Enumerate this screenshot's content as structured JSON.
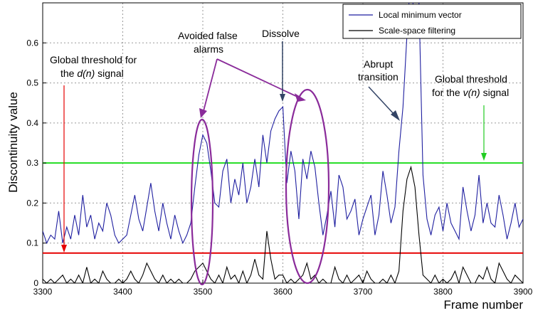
{
  "chart_data": {
    "type": "line",
    "title": "",
    "xlabel": "Frame number",
    "ylabel": "Discontinuity value",
    "xlim": [
      3300,
      3900
    ],
    "ylim": [
      0,
      0.7
    ],
    "xticks": [
      3300,
      3400,
      3500,
      3600,
      3700,
      3800,
      3900
    ],
    "yticks": [
      0,
      0.1,
      0.2,
      0.3,
      0.4,
      0.5,
      0.6
    ],
    "xtick_labels": [
      "3300",
      "3400",
      "3500",
      "3600",
      "3700",
      "3800",
      "3900"
    ],
    "ytick_labels": [
      "0",
      "0.1",
      "0.2",
      "0.3",
      "0.4",
      "0.5",
      "0.6"
    ],
    "grid": true,
    "legend_position": "top-right",
    "series": [
      {
        "name": "Local minimum vector",
        "color": "#1f1fa0",
        "x": [
          3300,
          3305,
          3310,
          3315,
          3320,
          3325,
          3330,
          3335,
          3340,
          3345,
          3350,
          3355,
          3360,
          3365,
          3370,
          3375,
          3380,
          3385,
          3390,
          3395,
          3400,
          3405,
          3410,
          3415,
          3420,
          3425,
          3430,
          3435,
          3440,
          3445,
          3450,
          3455,
          3460,
          3465,
          3470,
          3475,
          3480,
          3485,
          3490,
          3495,
          3500,
          3505,
          3510,
          3515,
          3520,
          3525,
          3530,
          3535,
          3540,
          3545,
          3550,
          3555,
          3560,
          3565,
          3570,
          3575,
          3580,
          3585,
          3590,
          3595,
          3600,
          3605,
          3610,
          3615,
          3620,
          3625,
          3630,
          3635,
          3640,
          3645,
          3650,
          3655,
          3660,
          3665,
          3670,
          3675,
          3680,
          3685,
          3690,
          3695,
          3700,
          3705,
          3710,
          3715,
          3720,
          3725,
          3730,
          3735,
          3740,
          3745,
          3750,
          3755,
          3760,
          3765,
          3770,
          3775,
          3780,
          3785,
          3790,
          3795,
          3800,
          3805,
          3810,
          3815,
          3820,
          3825,
          3830,
          3835,
          3840,
          3845,
          3850,
          3855,
          3860,
          3865,
          3870,
          3875,
          3880,
          3885,
          3890,
          3895,
          3900
        ],
        "y": [
          0.13,
          0.1,
          0.12,
          0.11,
          0.18,
          0.1,
          0.14,
          0.11,
          0.17,
          0.12,
          0.22,
          0.14,
          0.17,
          0.11,
          0.15,
          0.13,
          0.2,
          0.17,
          0.12,
          0.1,
          0.11,
          0.12,
          0.17,
          0.22,
          0.16,
          0.13,
          0.19,
          0.25,
          0.18,
          0.13,
          0.2,
          0.15,
          0.11,
          0.17,
          0.13,
          0.1,
          0.12,
          0.15,
          0.24,
          0.32,
          0.37,
          0.35,
          0.28,
          0.2,
          0.19,
          0.28,
          0.31,
          0.2,
          0.26,
          0.22,
          0.3,
          0.2,
          0.24,
          0.31,
          0.24,
          0.37,
          0.3,
          0.38,
          0.41,
          0.43,
          0.44,
          0.25,
          0.33,
          0.28,
          0.16,
          0.31,
          0.26,
          0.33,
          0.29,
          0.2,
          0.12,
          0.17,
          0.23,
          0.14,
          0.27,
          0.24,
          0.16,
          0.18,
          0.21,
          0.12,
          0.16,
          0.19,
          0.22,
          0.12,
          0.17,
          0.28,
          0.22,
          0.15,
          0.19,
          0.33,
          0.44,
          0.62,
          0.78,
          0.62,
          0.7,
          0.27,
          0.16,
          0.12,
          0.17,
          0.19,
          0.13,
          0.2,
          0.15,
          0.13,
          0.11,
          0.24,
          0.18,
          0.13,
          0.17,
          0.27,
          0.15,
          0.2,
          0.15,
          0.14,
          0.22,
          0.17,
          0.11,
          0.15,
          0.2,
          0.14,
          0.16
        ]
      },
      {
        "name": "Scale-space filtering",
        "color": "#000000",
        "x": [
          3300,
          3305,
          3310,
          3315,
          3320,
          3325,
          3330,
          3335,
          3340,
          3345,
          3350,
          3355,
          3360,
          3365,
          3370,
          3375,
          3380,
          3385,
          3390,
          3395,
          3400,
          3405,
          3410,
          3415,
          3420,
          3425,
          3430,
          3435,
          3440,
          3445,
          3450,
          3455,
          3460,
          3465,
          3470,
          3475,
          3480,
          3485,
          3490,
          3495,
          3500,
          3505,
          3510,
          3515,
          3520,
          3525,
          3530,
          3535,
          3540,
          3545,
          3550,
          3555,
          3560,
          3565,
          3570,
          3575,
          3580,
          3585,
          3590,
          3595,
          3600,
          3605,
          3610,
          3615,
          3620,
          3625,
          3630,
          3635,
          3640,
          3645,
          3650,
          3655,
          3660,
          3665,
          3670,
          3675,
          3680,
          3685,
          3690,
          3695,
          3700,
          3705,
          3710,
          3715,
          3720,
          3725,
          3730,
          3735,
          3740,
          3745,
          3750,
          3755,
          3760,
          3765,
          3770,
          3775,
          3780,
          3785,
          3790,
          3795,
          3800,
          3805,
          3810,
          3815,
          3820,
          3825,
          3830,
          3835,
          3840,
          3845,
          3850,
          3855,
          3860,
          3865,
          3870,
          3875,
          3880,
          3885,
          3890,
          3895,
          3900
        ],
        "y": [
          0.01,
          0.0,
          0.01,
          0.0,
          0.01,
          0.02,
          0.0,
          0.01,
          0.0,
          0.02,
          0.0,
          0.04,
          0.0,
          0.01,
          0.0,
          0.03,
          0.01,
          0.0,
          0.0,
          0.01,
          0.0,
          0.01,
          0.03,
          0.01,
          0.0,
          0.02,
          0.05,
          0.03,
          0.01,
          0.0,
          0.02,
          0.0,
          0.01,
          0.0,
          0.01,
          0.0,
          0.0,
          0.01,
          0.03,
          0.04,
          0.05,
          0.03,
          0.01,
          0.0,
          0.02,
          0.0,
          0.04,
          0.01,
          0.02,
          0.0,
          0.03,
          0.0,
          0.02,
          0.06,
          0.02,
          0.01,
          0.13,
          0.06,
          0.01,
          0.02,
          0.02,
          0.0,
          0.01,
          0.0,
          0.01,
          0.02,
          0.05,
          0.01,
          0.02,
          0.0,
          0.01,
          0.0,
          0.0,
          0.04,
          0.01,
          0.0,
          0.02,
          0.0,
          0.01,
          0.02,
          0.0,
          0.03,
          0.01,
          0.0,
          0.0,
          0.01,
          0.0,
          0.02,
          0.0,
          0.03,
          0.18,
          0.26,
          0.29,
          0.24,
          0.12,
          0.02,
          0.01,
          0.0,
          0.02,
          0.0,
          0.01,
          0.0,
          0.01,
          0.03,
          0.0,
          0.04,
          0.02,
          0.0,
          0.0,
          0.02,
          0.01,
          0.04,
          0.01,
          0.0,
          0.05,
          0.03,
          0.01,
          0.0,
          0.02,
          0.01,
          0.0
        ]
      }
    ],
    "thresholds": [
      {
        "label": "Global threshold for the d(n) signal",
        "value": 0.075,
        "color": "#e60000"
      },
      {
        "label": "Global threshold for the v(n) signal",
        "value": 0.3,
        "color": "#22dd22"
      }
    ],
    "annotations": {
      "dn_threshold": {
        "line1": "Global threshold for",
        "line2_pre": "the ",
        "var": "d(n)",
        "line2_post": " signal"
      },
      "vn_threshold": {
        "line1": "Global threshold",
        "line2_pre": "for the ",
        "var": "v(n)",
        "line2_post": " signal"
      },
      "false_alarms": {
        "line1": "Avoided false",
        "line2": "alarms"
      },
      "dissolve": "Dissolve",
      "abrupt": {
        "line1": "Abrupt",
        "line2": "transition"
      }
    }
  }
}
